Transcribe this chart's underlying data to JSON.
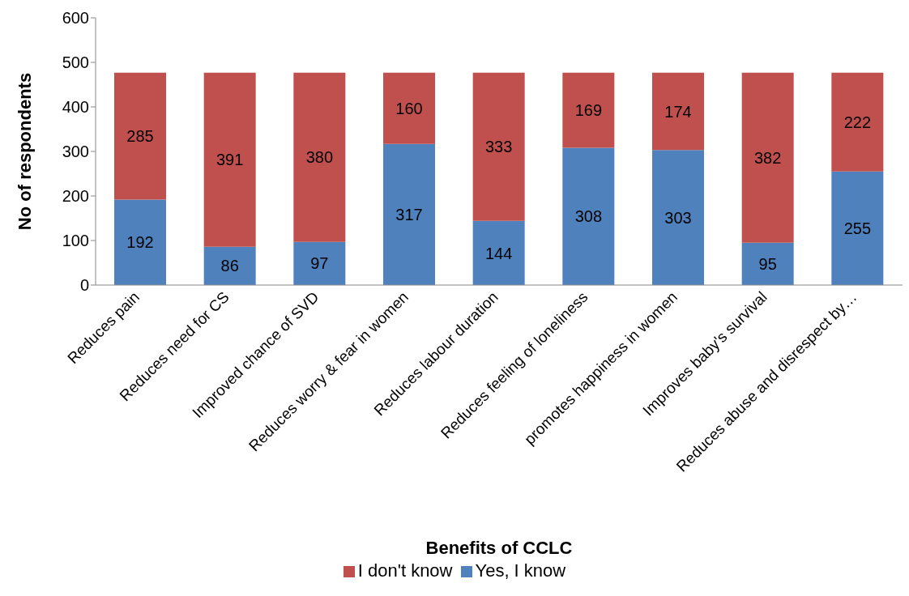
{
  "chart_data": {
    "type": "bar",
    "xlabel": "Benefits of CCLC",
    "ylabel": "No of respondents",
    "categories": [
      "Reduces pain",
      "Reduces need for CS",
      "Improved chance of SVD",
      "Reduces worry & fear in women",
      "Reduces labour duration",
      "Reduces feeling of loneliness",
      "promotes happiness in women",
      "Improves baby's survival",
      "Reduces abuse and disrespect by…"
    ],
    "series": [
      {
        "name": "Yes, I know",
        "color": "#4f81bd",
        "values": [
          192,
          86,
          97,
          317,
          144,
          308,
          303,
          95,
          255
        ]
      },
      {
        "name": "I don't know",
        "color": "#c0504d",
        "values": [
          285,
          391,
          380,
          160,
          333,
          169,
          174,
          382,
          222
        ]
      }
    ],
    "stacked": true,
    "ylim": [
      0,
      600
    ],
    "yticks": [
      0,
      100,
      200,
      300,
      400,
      500,
      600
    ],
    "data_labels": true,
    "legend": "bottom"
  }
}
